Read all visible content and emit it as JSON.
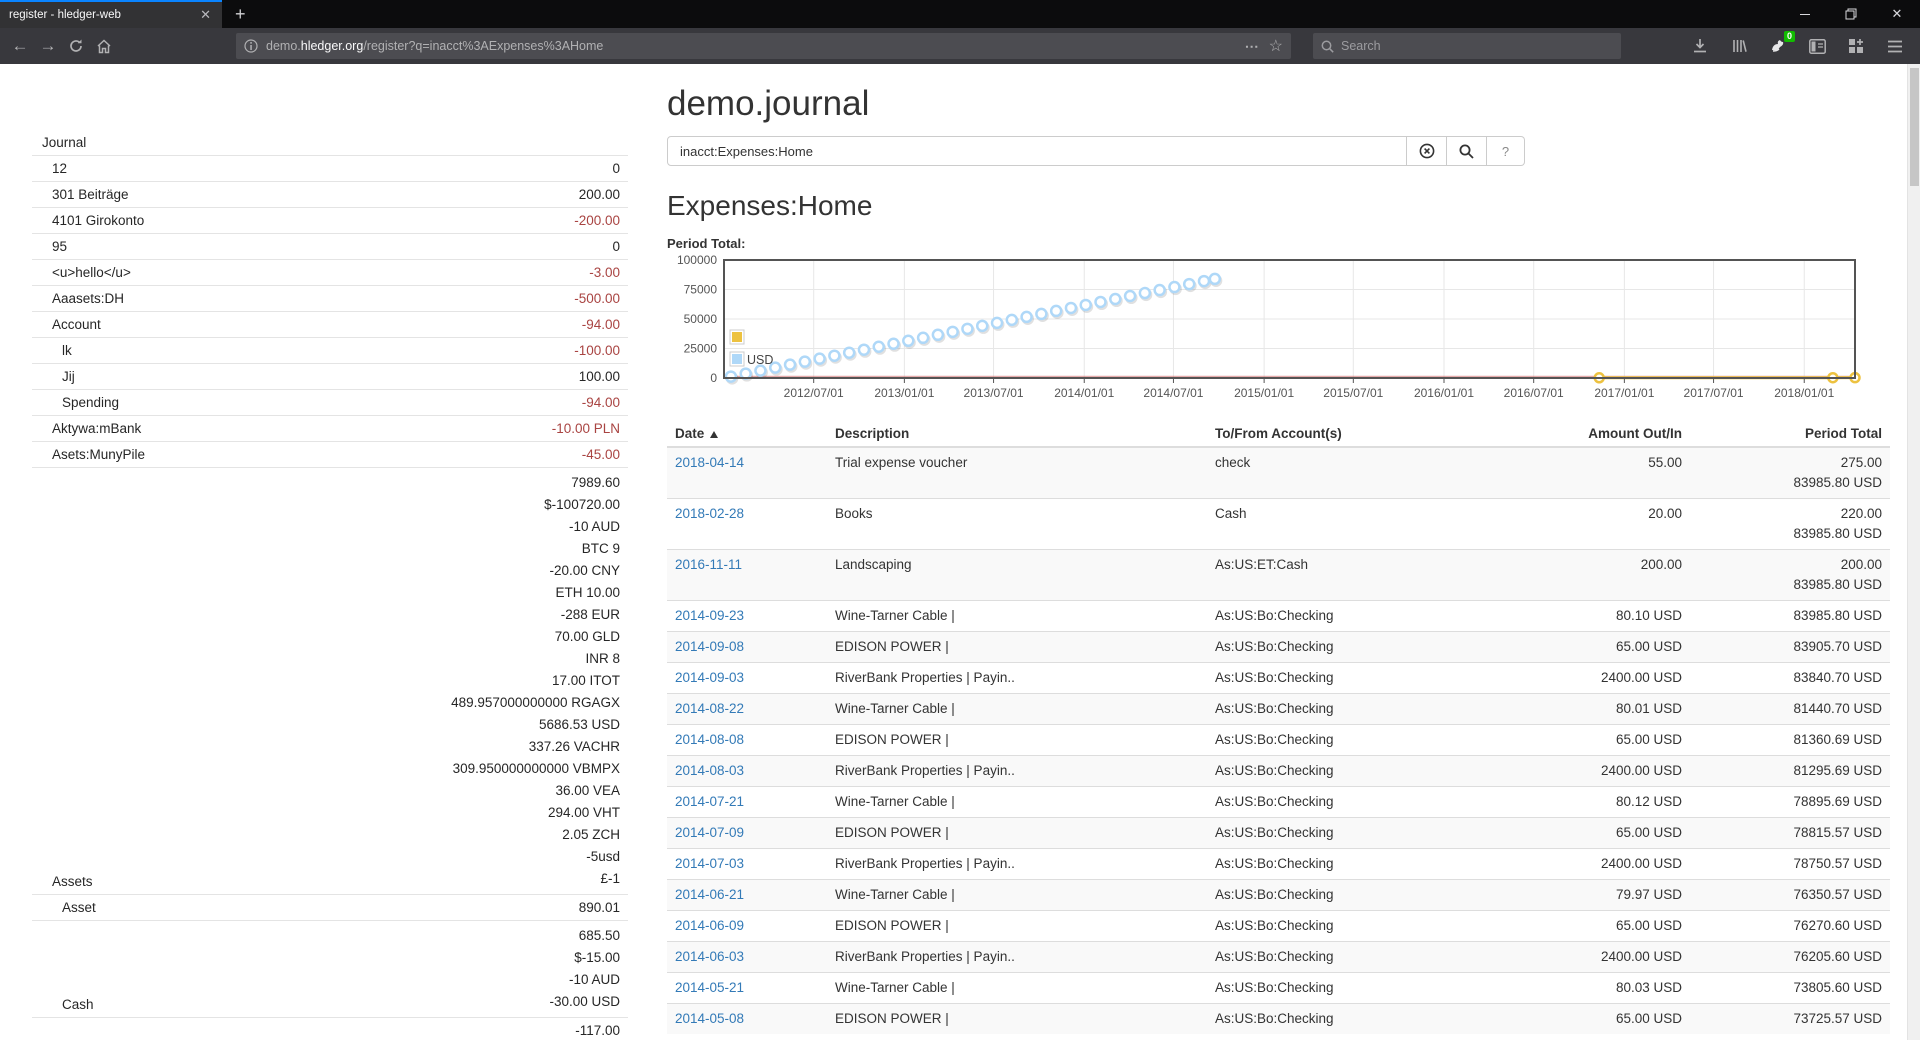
{
  "browser": {
    "tab_title": "register - hledger-web",
    "url_prefix": "demo.",
    "url_domain": "hledger.org",
    "url_path": "/register?q=inacct%3AExpenses%3AHome",
    "search_placeholder": "Search",
    "extension_badge": "0"
  },
  "page": {
    "title": "demo.journal",
    "query": "inacct:Expenses:Home",
    "help_label": "?",
    "account_heading": "Expenses:Home",
    "chart_label": "Period Total:"
  },
  "sidebar": {
    "rows": [
      {
        "name": "Journal",
        "indent": 0,
        "amounts": []
      },
      {
        "name": "12",
        "indent": 1,
        "amounts": [
          {
            "text": "0",
            "neg": false
          }
        ]
      },
      {
        "name": "301 Beiträge",
        "indent": 1,
        "amounts": [
          {
            "text": "200.00",
            "neg": false
          }
        ]
      },
      {
        "name": "4101 Girokonto",
        "indent": 1,
        "amounts": [
          {
            "text": "-200.00",
            "neg": true
          }
        ]
      },
      {
        "name": "95",
        "indent": 1,
        "amounts": [
          {
            "text": "0",
            "neg": false
          }
        ]
      },
      {
        "name": "<u>hello</u>",
        "indent": 1,
        "amounts": [
          {
            "text": "-3.00",
            "neg": true
          }
        ]
      },
      {
        "name": "Aaasets:DH",
        "indent": 1,
        "amounts": [
          {
            "text": "-500.00",
            "neg": true
          }
        ]
      },
      {
        "name": "Account",
        "indent": 1,
        "amounts": [
          {
            "text": "-94.00",
            "neg": true
          }
        ]
      },
      {
        "name": "lk",
        "indent": 2,
        "amounts": [
          {
            "text": "-100.00",
            "neg": true
          }
        ]
      },
      {
        "name": "Jij",
        "indent": 2,
        "amounts": [
          {
            "text": "100.00",
            "neg": false
          }
        ]
      },
      {
        "name": "Spending",
        "indent": 2,
        "amounts": [
          {
            "text": "-94.00",
            "neg": true
          }
        ]
      },
      {
        "name": "Aktywa:mBank",
        "indent": 1,
        "amounts": [
          {
            "text": "-10.00 PLN",
            "neg": true
          }
        ]
      },
      {
        "name": "Asets:MunyPile",
        "indent": 1,
        "amounts": [
          {
            "text": "-45.00",
            "neg": true
          }
        ]
      },
      {
        "name": "Assets",
        "indent": 1,
        "amounts": [
          {
            "text": "7989.60",
            "neg": false
          },
          {
            "text": "$-100720.00",
            "neg": false
          },
          {
            "text": "-10 AUD",
            "neg": false
          },
          {
            "text": "BTC 9",
            "neg": false
          },
          {
            "text": "-20.00 CNY",
            "neg": false
          },
          {
            "text": "ETH 10.00",
            "neg": false
          },
          {
            "text": "-288 EUR",
            "neg": false
          },
          {
            "text": "70.00 GLD",
            "neg": false
          },
          {
            "text": "INR 8",
            "neg": false
          },
          {
            "text": "17.00 ITOT",
            "neg": false
          },
          {
            "text": "489.957000000000 RGAGX",
            "neg": false
          },
          {
            "text": "5686.53 USD",
            "neg": false
          },
          {
            "text": "337.26 VACHR",
            "neg": false
          },
          {
            "text": "309.950000000000 VBMPX",
            "neg": false
          },
          {
            "text": "36.00 VEA",
            "neg": false
          },
          {
            "text": "294.00 VHT",
            "neg": false
          },
          {
            "text": "2.05 ZCH",
            "neg": false
          },
          {
            "text": "-5usd",
            "neg": false
          },
          {
            "text": "£-1",
            "neg": false
          }
        ]
      },
      {
        "name": "Asset",
        "indent": 2,
        "amounts": [
          {
            "text": "890.01",
            "neg": false
          }
        ]
      },
      {
        "name": "Cash",
        "indent": 2,
        "amounts": [
          {
            "text": "685.50",
            "neg": false
          },
          {
            "text": "$-15.00",
            "neg": false
          },
          {
            "text": "-10 AUD",
            "neg": false
          },
          {
            "text": "-30.00 USD",
            "neg": false
          }
        ]
      },
      {
        "name": "",
        "indent": 2,
        "amounts": [
          {
            "text": "-117.00",
            "neg": false
          }
        ]
      }
    ]
  },
  "register": {
    "columns": [
      "Date",
      "Description",
      "To/From Account(s)",
      "Amount Out/In",
      "Period Total"
    ],
    "rows": [
      {
        "date": "2018-04-14",
        "description": "Trial expense voucher",
        "account": "check",
        "amount": "55.00",
        "totals": [
          "275.00",
          "83985.80 USD"
        ]
      },
      {
        "date": "2018-02-28",
        "description": "Books",
        "account": "Cash",
        "amount": "20.00",
        "totals": [
          "220.00",
          "83985.80 USD"
        ]
      },
      {
        "date": "2016-11-11",
        "description": "Landscaping",
        "account": "As:US:ET:Cash",
        "amount": "200.00",
        "totals": [
          "200.00",
          "83985.80 USD"
        ]
      },
      {
        "date": "2014-09-23",
        "description": "Wine-Tarner Cable |",
        "account": "As:US:Bo:Checking",
        "amount": "80.10 USD",
        "totals": [
          "83985.80 USD"
        ]
      },
      {
        "date": "2014-09-08",
        "description": "EDISON POWER |",
        "account": "As:US:Bo:Checking",
        "amount": "65.00 USD",
        "totals": [
          "83905.70 USD"
        ]
      },
      {
        "date": "2014-09-03",
        "description": "RiverBank Properties | Payin..",
        "account": "As:US:Bo:Checking",
        "amount": "2400.00 USD",
        "totals": [
          "83840.70 USD"
        ]
      },
      {
        "date": "2014-08-22",
        "description": "Wine-Tarner Cable |",
        "account": "As:US:Bo:Checking",
        "amount": "80.01 USD",
        "totals": [
          "81440.70 USD"
        ]
      },
      {
        "date": "2014-08-08",
        "description": "EDISON POWER |",
        "account": "As:US:Bo:Checking",
        "amount": "65.00 USD",
        "totals": [
          "81360.69 USD"
        ]
      },
      {
        "date": "2014-08-03",
        "description": "RiverBank Properties | Payin..",
        "account": "As:US:Bo:Checking",
        "amount": "2400.00 USD",
        "totals": [
          "81295.69 USD"
        ]
      },
      {
        "date": "2014-07-21",
        "description": "Wine-Tarner Cable |",
        "account": "As:US:Bo:Checking",
        "amount": "80.12 USD",
        "totals": [
          "78895.69 USD"
        ]
      },
      {
        "date": "2014-07-09",
        "description": "EDISON POWER |",
        "account": "As:US:Bo:Checking",
        "amount": "65.00 USD",
        "totals": [
          "78815.57 USD"
        ]
      },
      {
        "date": "2014-07-03",
        "description": "RiverBank Properties | Payin..",
        "account": "As:US:Bo:Checking",
        "amount": "2400.00 USD",
        "totals": [
          "78750.57 USD"
        ]
      },
      {
        "date": "2014-06-21",
        "description": "Wine-Tarner Cable |",
        "account": "As:US:Bo:Checking",
        "amount": "79.97 USD",
        "totals": [
          "76350.57 USD"
        ]
      },
      {
        "date": "2014-06-09",
        "description": "EDISON POWER |",
        "account": "As:US:Bo:Checking",
        "amount": "65.00 USD",
        "totals": [
          "76270.60 USD"
        ]
      },
      {
        "date": "2014-06-03",
        "description": "RiverBank Properties | Payin..",
        "account": "As:US:Bo:Checking",
        "amount": "2400.00 USD",
        "totals": [
          "76205.60 USD"
        ]
      },
      {
        "date": "2014-05-21",
        "description": "Wine-Tarner Cable |",
        "account": "As:US:Bo:Checking",
        "amount": "80.03 USD",
        "totals": [
          "73805.60 USD"
        ]
      },
      {
        "date": "2014-05-08",
        "description": "EDISON POWER |",
        "account": "As:US:Bo:Checking",
        "amount": "65.00 USD",
        "totals": [
          "73725.57 USD"
        ]
      }
    ]
  },
  "chart_data": {
    "type": "line",
    "title": "Period Total",
    "x_start_date": "2012-01-01",
    "x_end_date": "2018-04-15",
    "x_max_day": 2295,
    "y_max": 100000,
    "y_ticks": [
      0,
      25000,
      50000,
      75000,
      100000
    ],
    "x_ticks": [
      {
        "day": 182,
        "label": "2012/07/01"
      },
      {
        "day": 366,
        "label": "2013/01/01"
      },
      {
        "day": 547,
        "label": "2013/07/01"
      },
      {
        "day": 731,
        "label": "2014/01/01"
      },
      {
        "day": 912,
        "label": "2014/07/01"
      },
      {
        "day": 1096,
        "label": "2015/01/01"
      },
      {
        "day": 1277,
        "label": "2015/07/01"
      },
      {
        "day": 1461,
        "label": "2016/01/01"
      },
      {
        "day": 1643,
        "label": "2016/07/01"
      },
      {
        "day": 1827,
        "label": "2017/01/01"
      },
      {
        "day": 2008,
        "label": "2017/07/01"
      },
      {
        "day": 2192,
        "label": "2018/01/01"
      }
    ],
    "legend_position": "bottom-left",
    "grid": true,
    "series": [
      {
        "name": "USD",
        "color": "#afd8f8",
        "style": "points",
        "points": [
          [
            14,
            1200
          ],
          [
            44,
            3729
          ],
          [
            74,
            6258
          ],
          [
            104,
            8787
          ],
          [
            134,
            11316
          ],
          [
            164,
            13845
          ],
          [
            194,
            16375
          ],
          [
            224,
            18904
          ],
          [
            254,
            21433
          ],
          [
            284,
            23962
          ],
          [
            314,
            26491
          ],
          [
            344,
            29020
          ],
          [
            374,
            31549
          ],
          [
            404,
            34078
          ],
          [
            434,
            36607
          ],
          [
            464,
            39136
          ],
          [
            494,
            41666
          ],
          [
            524,
            44195
          ],
          [
            554,
            46724
          ],
          [
            584,
            49253
          ],
          [
            614,
            51782
          ],
          [
            644,
            54311
          ],
          [
            674,
            56840
          ],
          [
            704,
            59369
          ],
          [
            734,
            61898
          ],
          [
            764,
            64427
          ],
          [
            794,
            66957
          ],
          [
            824,
            69486
          ],
          [
            854,
            72015
          ],
          [
            884,
            74544
          ],
          [
            914,
            77073
          ],
          [
            944,
            79602
          ],
          [
            974,
            82131
          ],
          [
            996,
            83986
          ]
        ]
      },
      {
        "name": "",
        "color": "#edc240",
        "style": "line+markers",
        "dates": [
          "2016-11-11",
          "2018-02-28",
          "2018-04-14"
        ],
        "points": [
          [
            1776,
            200
          ],
          [
            2250,
            220
          ],
          [
            2295,
            275
          ]
        ]
      }
    ]
  }
}
